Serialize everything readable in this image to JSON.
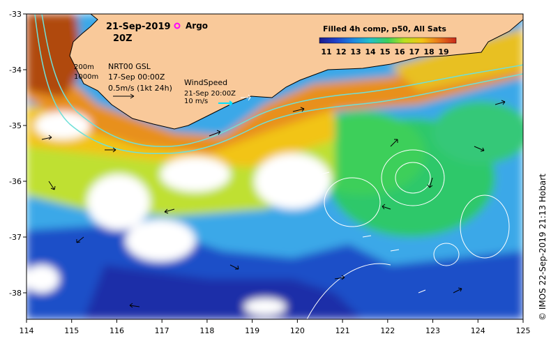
{
  "map": {
    "date": "21-Sep-2019",
    "time": "20Z",
    "argo_label": "Argo",
    "isobath_shallow": "200m",
    "isobath_deep": "1000m",
    "current_source": "NRT00 GSL",
    "current_time": "17-Sep 00:00Z",
    "current_scale": "0.5m/s (1kt 24h)",
    "wind_title": "WindSpeed",
    "wind_time": "21-Sep 20:00Z",
    "wind_scale": "10 m/s",
    "credit": "© IMOS 22-Sep-2019 21:13 Hobart",
    "colorbar_title": "Filled 4h comp, p50, All Sats",
    "colorbar_ticks": [
      "11",
      "12",
      "13",
      "14",
      "15",
      "16",
      "17",
      "18",
      "19"
    ],
    "colorbar_colors": [
      "#1a1a8c",
      "#1f3fc8",
      "#1e88e0",
      "#23c0c8",
      "#3ccf5a",
      "#b8e020",
      "#f2c414",
      "#e8781a",
      "#c8281a",
      "#8c1010"
    ],
    "x_ticks": [
      "114",
      "115",
      "116",
      "117",
      "118",
      "119",
      "120",
      "121",
      "122",
      "123",
      "124",
      "125"
    ],
    "y_ticks": [
      "-33",
      "-34",
      "-35",
      "-36",
      "-37",
      "-38"
    ],
    "land_color": "#f9c99a",
    "argo_color": "#ff00ff"
  }
}
